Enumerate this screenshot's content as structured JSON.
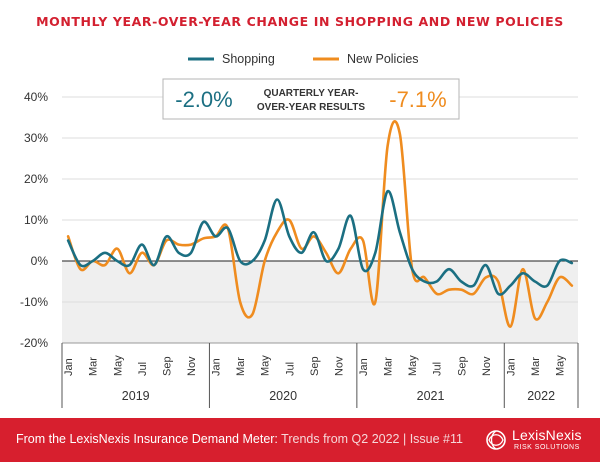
{
  "header": {
    "title": "MONTHLY YEAR-OVER-YEAR CHANGE IN SHOPPING AND NEW POLICIES"
  },
  "colors": {
    "shopping": "#1b6f82",
    "new_policies": "#ef8c1f",
    "title": "#d32030",
    "footer": "#d71f2e"
  },
  "quarterly": {
    "shopping_value": "-2.0%",
    "label": "QUARTERLY YEAR-OVER-YEAR RESULTS",
    "label_line1": "QUARTERLY YEAR-",
    "label_line2": "OVER-YEAR RESULTS",
    "policies_value": "-7.1%"
  },
  "footer": {
    "text_bold": "From the LexisNexis Insurance Demand Meter:",
    "text_light": " Trends from Q2 2022 | Issue #11",
    "logo_name": "LexisNexis",
    "logo_sub": "RISK SOLUTIONS",
    "logo_icon": "lexisnexis-knot-icon"
  },
  "chart_data": {
    "type": "line",
    "ylim": [
      -20,
      40
    ],
    "yticks": [
      -20,
      -10,
      0,
      10,
      20,
      30,
      40
    ],
    "ytick_labels": [
      "-20%",
      "-10%",
      "0%",
      "10%",
      "20%",
      "30%",
      "40%"
    ],
    "grid": "horizontal",
    "legend_position": "top-center",
    "month_labels": [
      "Jan",
      "Mar",
      "May",
      "Jul",
      "Sep",
      "Nov",
      "Jan",
      "Mar",
      "May",
      "Jul",
      "Sep",
      "Nov",
      "Jan",
      "Mar",
      "May",
      "Jul",
      "Sep",
      "Nov",
      "Jan",
      "Mar",
      "May"
    ],
    "years": [
      "2019",
      "2020",
      "2021",
      "2022"
    ],
    "x": [
      "2019-01",
      "2019-02",
      "2019-03",
      "2019-04",
      "2019-05",
      "2019-06",
      "2019-07",
      "2019-08",
      "2019-09",
      "2019-10",
      "2019-11",
      "2019-12",
      "2020-01",
      "2020-02",
      "2020-03",
      "2020-04",
      "2020-05",
      "2020-06",
      "2020-07",
      "2020-08",
      "2020-09",
      "2020-10",
      "2020-11",
      "2020-12",
      "2021-01",
      "2021-02",
      "2021-03",
      "2021-04",
      "2021-05",
      "2021-06",
      "2021-07",
      "2021-08",
      "2021-09",
      "2021-10",
      "2021-11",
      "2021-12",
      "2022-01",
      "2022-02",
      "2022-03",
      "2022-04",
      "2022-05",
      "2022-06"
    ],
    "series": [
      {
        "name": "Shopping",
        "values": [
          5,
          -1,
          0,
          2,
          0,
          -1,
          4,
          -1,
          6,
          2,
          2,
          9.5,
          6,
          8,
          0,
          0,
          5,
          15,
          6,
          2,
          7,
          0,
          3,
          11,
          -2,
          2,
          17,
          7,
          -2,
          -5,
          -5,
          -2,
          -5,
          -6,
          -1,
          -8,
          -6,
          -3,
          -5,
          -6,
          0,
          -0.5
        ]
      },
      {
        "name": "New Policies",
        "values": [
          6,
          -2,
          0,
          -1,
          3,
          -3,
          2,
          -1,
          5,
          4,
          4,
          5.5,
          6,
          8,
          -10,
          -13,
          0,
          7,
          10,
          3,
          6,
          2,
          -3,
          3,
          5,
          -10,
          28,
          31,
          -2,
          -4,
          -8,
          -7,
          -7,
          -8,
          -4,
          -5,
          -16,
          -2,
          -14,
          -10,
          -4,
          -6
        ]
      }
    ]
  }
}
